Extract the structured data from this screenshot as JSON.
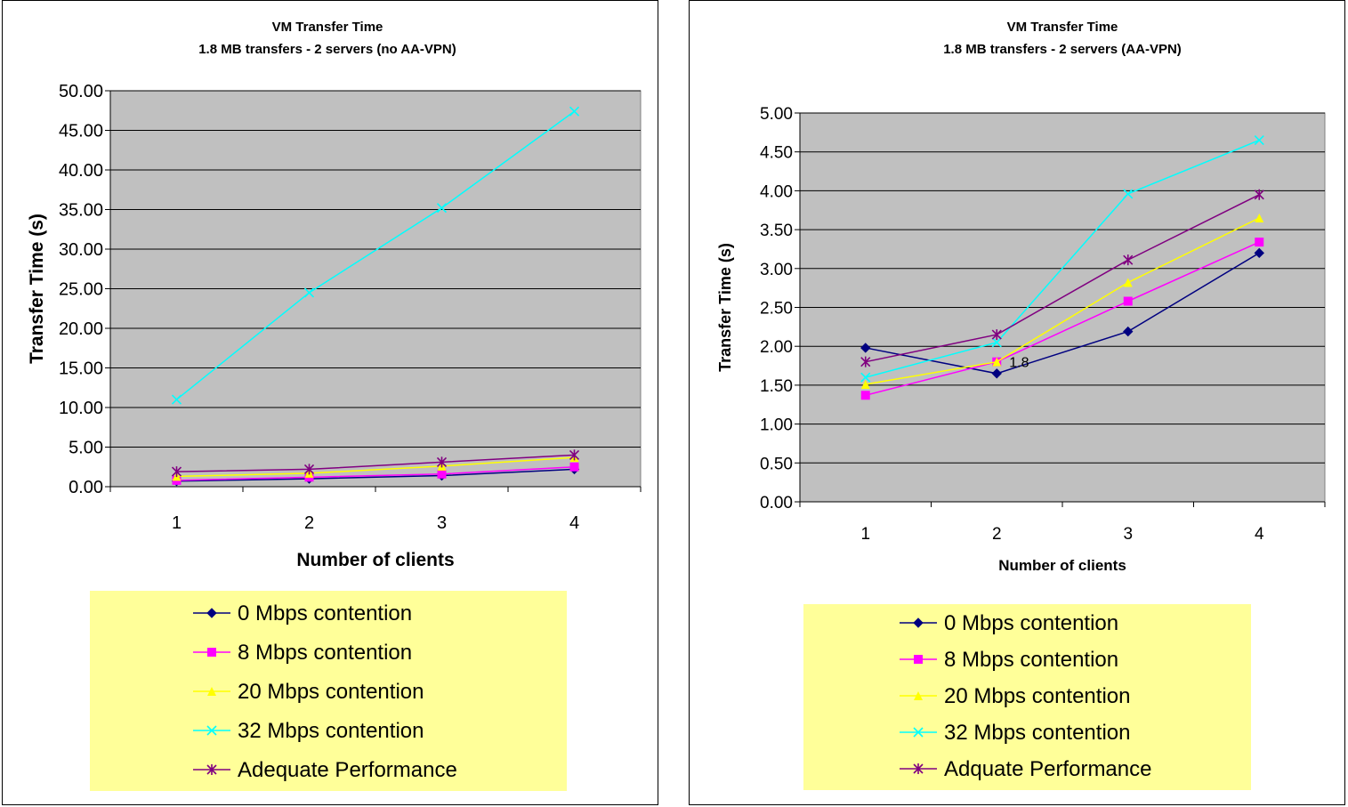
{
  "chart_data": [
    {
      "type": "line",
      "title": "VM Transfer Time",
      "subtitle": "1.8 MB transfers - 2 servers (no AA-VPN)",
      "xlabel": "Number of clients",
      "ylabel": "Transfer Time (s)",
      "categories": [
        "1",
        "2",
        "3",
        "4"
      ],
      "ylim": [
        0,
        50
      ],
      "ytick_step": 5,
      "ytick_labels": [
        "0.00",
        "5.00",
        "10.00",
        "15.00",
        "20.00",
        "25.00",
        "30.00",
        "35.00",
        "40.00",
        "45.00",
        "50.00"
      ],
      "grid": true,
      "legend_position": "bottom",
      "series": [
        {
          "name": "0 Mbps contention",
          "values": [
            0.7,
            1.0,
            1.4,
            2.2
          ],
          "color": "#000080",
          "marker": "diamond"
        },
        {
          "name": "8 Mbps contention",
          "values": [
            0.8,
            1.2,
            1.6,
            2.5
          ],
          "color": "#FF00FF",
          "marker": "square"
        },
        {
          "name": "20 Mbps contention",
          "values": [
            1.3,
            1.7,
            2.6,
            3.7
          ],
          "color": "#FFFF00",
          "marker": "triangle"
        },
        {
          "name": "32 Mbps contention",
          "values": [
            11.0,
            24.5,
            35.2,
            47.4
          ],
          "color": "#00FFFF",
          "marker": "x"
        },
        {
          "name": "Adequate Performance",
          "values": [
            1.9,
            2.2,
            3.1,
            4.0
          ],
          "color": "#800080",
          "marker": "star"
        }
      ],
      "annotations": []
    },
    {
      "type": "line",
      "title": "VM Transfer Time",
      "subtitle": "1.8 MB transfers - 2 servers (AA-VPN)",
      "xlabel": "Number of clients",
      "ylabel": "Transfer Time (s)",
      "categories": [
        "1",
        "2",
        "3",
        "4"
      ],
      "ylim": [
        0,
        5
      ],
      "ytick_step": 0.5,
      "ytick_labels": [
        "0.00",
        "0.50",
        "1.00",
        "1.50",
        "2.00",
        "2.50",
        "3.00",
        "3.50",
        "4.00",
        "4.50",
        "5.00"
      ],
      "grid": true,
      "legend_position": "bottom",
      "series": [
        {
          "name": "0 Mbps contention",
          "values": [
            1.98,
            1.65,
            2.19,
            3.2
          ],
          "color": "#000080",
          "marker": "diamond"
        },
        {
          "name": "8 Mbps contention",
          "values": [
            1.37,
            1.8,
            2.58,
            3.34
          ],
          "color": "#FF00FF",
          "marker": "square"
        },
        {
          "name": "20 Mbps contention",
          "values": [
            1.51,
            1.8,
            2.82,
            3.65
          ],
          "color": "#FFFF00",
          "marker": "triangle"
        },
        {
          "name": "32 Mbps contention",
          "values": [
            1.6,
            2.05,
            3.96,
            4.65
          ],
          "color": "#00FFFF",
          "marker": "x"
        },
        {
          "name": "Adquate Performance",
          "values": [
            1.8,
            2.15,
            3.11,
            3.95
          ],
          "color": "#800080",
          "marker": "star"
        }
      ],
      "annotations": [
        {
          "text": "1.8",
          "x": "2",
          "y": 1.8
        }
      ]
    }
  ]
}
